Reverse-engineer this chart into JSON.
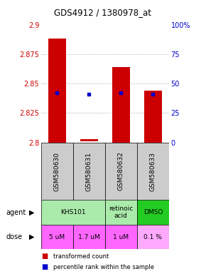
{
  "title": "GDS4912 / 1380978_at",
  "samples": [
    "GSM580630",
    "GSM580631",
    "GSM580632",
    "GSM580633"
  ],
  "bar_bottoms": [
    2.8,
    2.801,
    2.8,
    2.8
  ],
  "bar_tops": [
    2.888,
    2.803,
    2.864,
    2.844
  ],
  "percentile_values": [
    2.842,
    2.841,
    2.842,
    2.841
  ],
  "ylim": [
    2.8,
    2.9
  ],
  "yticks_left": [
    2.8,
    2.825,
    2.85,
    2.875,
    2.9
  ],
  "yticks_right_labels": [
    "0",
    "25",
    "50",
    "75",
    "100%"
  ],
  "bar_color": "#cc0000",
  "dot_color": "#0000cc",
  "agent_spans": [
    {
      "label": "KHS101",
      "c0": 0,
      "c1": 2,
      "color": "#aaeaaa"
    },
    {
      "label": "retinoic\nacid",
      "c0": 2,
      "c1": 3,
      "color": "#aaeaaa"
    },
    {
      "label": "DMSO",
      "c0": 3,
      "c1": 4,
      "color": "#22cc22"
    }
  ],
  "dose_spans": [
    {
      "label": "5 uM",
      "c0": 0,
      "c1": 1,
      "color": "#ff66ff"
    },
    {
      "label": "1.7 uM",
      "c0": 1,
      "c1": 2,
      "color": "#ff66ff"
    },
    {
      "label": "1 uM",
      "c0": 2,
      "c1": 3,
      "color": "#ff66ff"
    },
    {
      "label": "0.1 %",
      "c0": 3,
      "c1": 4,
      "color": "#ffaaff"
    }
  ],
  "legend": [
    {
      "color": "#cc0000",
      "label": "transformed count"
    },
    {
      "color": "#0000cc",
      "label": "percentile rank within the sample"
    }
  ],
  "sample_bg": "#cccccc",
  "bar_color_left": "#cc0000",
  "bar_color_right": "#0000cc",
  "grid_color": "#999999",
  "bar_width": 0.55
}
